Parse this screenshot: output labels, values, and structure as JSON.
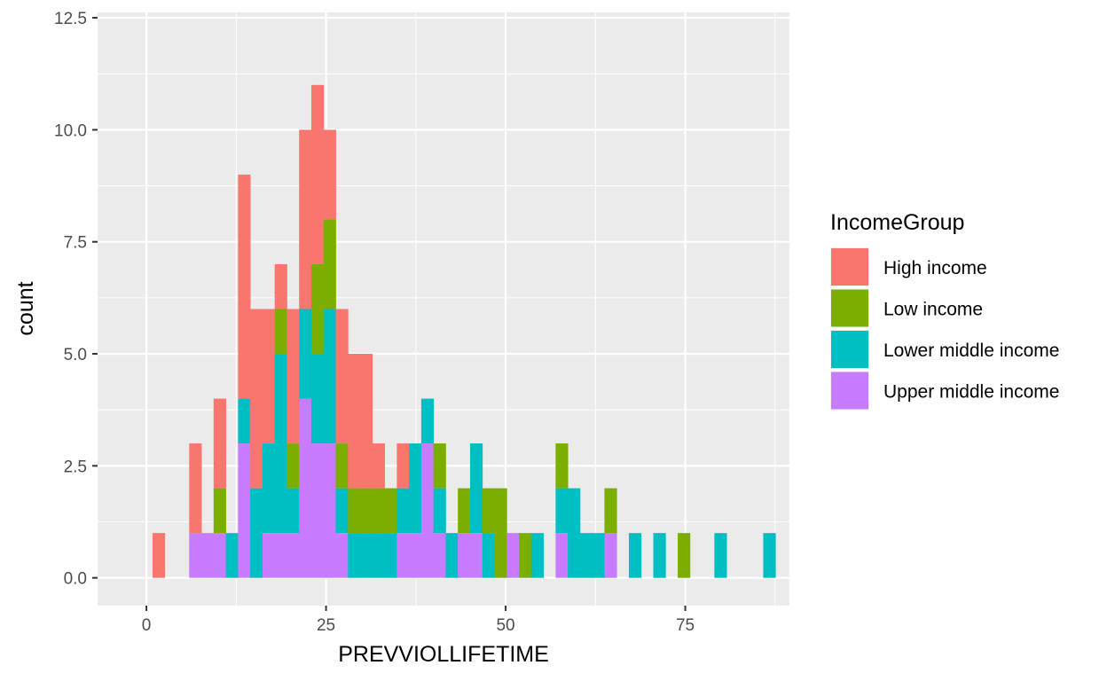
{
  "chart_data": {
    "type": "bar",
    "subtype": "stacked-histogram",
    "xlabel": "PREVVIOLLIFETIME",
    "ylabel": "count",
    "xlim": [
      -6.8,
      89.5
    ],
    "ylim": [
      -0.62,
      12.62
    ],
    "x_ticks": [
      0,
      25,
      50,
      75
    ],
    "x_tick_labels": [
      "0",
      "25",
      "50",
      "75"
    ],
    "y_ticks": [
      0,
      2.5,
      5,
      7.5,
      10,
      12.5
    ],
    "y_tick_labels": [
      "0.0",
      "2.5",
      "5.0",
      "7.5",
      "10.0",
      "12.5"
    ],
    "grid": true,
    "legend_position": "right",
    "legend_title": "IncomeGroup",
    "bin_width": 1.7,
    "bin_start": 0.85,
    "stack_order": [
      "Upper middle income",
      "Lower middle income",
      "Low income",
      "High income"
    ],
    "colors": {
      "High income": "#F8766D",
      "Low income": "#7CAE00",
      "Lower middle income": "#00BFC4",
      "Upper middle income": "#C77CFF"
    },
    "series": [
      {
        "name": "High income",
        "counts": {
          "0": 1,
          "3": 2,
          "5": 2,
          "7": 5,
          "8": 4,
          "9": 3,
          "10": 1,
          "11": 3,
          "12": 4,
          "13": 4,
          "14": 2,
          "15": 3,
          "16": 3,
          "17": 3,
          "18": 1,
          "20": 1
        }
      },
      {
        "name": "Low income",
        "counts": {
          "5": 1,
          "10": 1,
          "11": 1,
          "13": 2,
          "14": 2,
          "15": 1,
          "16": 1,
          "17": 1,
          "18": 1,
          "19": 1,
          "23": 1,
          "25": 1,
          "27": 1,
          "28": 2,
          "30": 1,
          "33": 1,
          "37": 1,
          "43": 1
        }
      },
      {
        "name": "Lower middle income",
        "counts": {
          "6": 1,
          "7": 1,
          "8": 2,
          "9": 2,
          "10": 4,
          "11": 1,
          "12": 2,
          "13": 2,
          "14": 3,
          "15": 1,
          "16": 1,
          "17": 1,
          "18": 1,
          "19": 1,
          "20": 1,
          "21": 2,
          "22": 1,
          "23": 1,
          "24": 1,
          "26": 2,
          "27": 1,
          "31": 1,
          "33": 1,
          "34": 2,
          "35": 1,
          "36": 1,
          "39": 1,
          "41": 1,
          "46": 1,
          "50": 1
        }
      },
      {
        "name": "Upper middle income",
        "counts": {
          "3": 1,
          "4": 1,
          "5": 1,
          "7": 3,
          "9": 1,
          "10": 1,
          "11": 1,
          "12": 4,
          "13": 3,
          "14": 3,
          "15": 1,
          "20": 1,
          "21": 1,
          "22": 3,
          "23": 1,
          "25": 1,
          "26": 1,
          "29": 1,
          "33": 1,
          "37": 1
        }
      }
    ]
  }
}
